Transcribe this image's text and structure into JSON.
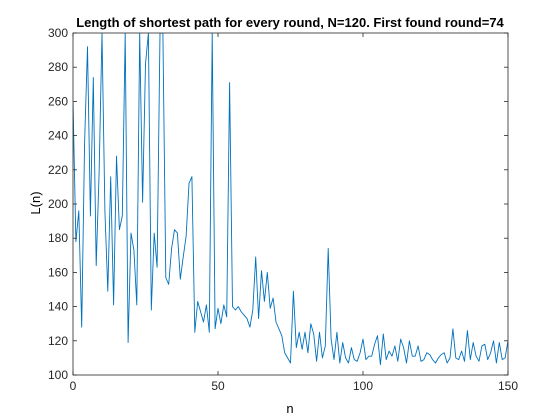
{
  "chart_data": {
    "type": "line",
    "title": "Length of shortest path for every round, N=120. First found round=74",
    "xlabel": "n",
    "ylabel": "L(n)",
    "xlim": [
      0,
      150
    ],
    "ylim": [
      100,
      300
    ],
    "xticks": [
      0,
      50,
      100,
      150
    ],
    "yticks": [
      100,
      120,
      140,
      160,
      180,
      200,
      220,
      240,
      260,
      280,
      300
    ],
    "grid": false,
    "legend": "none",
    "series_color": "#0072bd",
    "axis_color": "#262626",
    "series": [
      {
        "x": [
          0,
          1,
          2,
          3,
          4,
          5,
          6,
          7,
          8,
          9,
          10,
          11,
          12,
          13,
          14,
          15,
          16,
          17,
          18,
          19,
          20,
          21,
          22,
          23,
          24,
          25,
          26,
          27,
          28,
          29,
          30,
          31,
          32,
          33,
          34,
          35,
          36,
          37,
          38,
          39,
          40,
          41,
          42,
          43,
          44,
          45,
          46,
          47,
          48,
          49,
          50,
          51,
          52,
          53,
          54,
          55,
          56,
          57,
          58,
          59,
          60,
          61,
          62,
          63,
          64,
          65,
          66,
          67,
          68,
          69,
          70,
          71,
          72,
          73,
          74,
          75,
          76,
          77,
          78,
          79,
          80,
          81,
          82,
          83,
          84,
          85,
          86,
          87,
          88,
          89,
          90,
          91,
          92,
          93,
          94,
          95,
          96,
          97,
          98,
          99,
          100,
          101,
          102,
          103,
          104,
          105,
          106,
          107,
          108,
          109,
          110,
          111,
          112,
          113,
          114,
          115,
          116,
          117,
          118,
          119,
          120,
          121,
          122,
          123,
          124,
          125,
          126,
          127,
          128,
          129,
          130,
          131,
          132,
          133,
          134,
          135,
          136,
          137,
          138,
          139,
          140,
          141,
          142,
          143,
          144,
          145,
          146,
          147,
          148,
          149,
          150
        ],
        "values": [
          260,
          178,
          196,
          128,
          236,
          292,
          193,
          274,
          164,
          218,
          300,
          196,
          149,
          216,
          141,
          228,
          185,
          193,
          300,
          119,
          183,
          173,
          141,
          300,
          201,
          282,
          300,
          138,
          183,
          163,
          300,
          300,
          157,
          153,
          174,
          185,
          183,
          156,
          169,
          181,
          212,
          216,
          125,
          143,
          137,
          131,
          141,
          125,
          300,
          127,
          139,
          130,
          141,
          134,
          271,
          140,
          138,
          140,
          137,
          135,
          133,
          128,
          138,
          169,
          133,
          161,
          143,
          160,
          139,
          145,
          131,
          127,
          123,
          113,
          110,
          107,
          149,
          116,
          125,
          115,
          125,
          113,
          130,
          124,
          108,
          125,
          110,
          117,
          174,
          121,
          109,
          125,
          107,
          119,
          110,
          107,
          116,
          109,
          108,
          113,
          121,
          109,
          111,
          111,
          118,
          123,
          106,
          124,
          109,
          114,
          111,
          117,
          108,
          121,
          116,
          107,
          120,
          111,
          111,
          117,
          108,
          109,
          113,
          112,
          109,
          107,
          110,
          112,
          113,
          107,
          110,
          127,
          110,
          109,
          114,
          108,
          126,
          109,
          119,
          111,
          108,
          117,
          118,
          109,
          113,
          120,
          107,
          119,
          109,
          110,
          120
        ]
      }
    ]
  }
}
